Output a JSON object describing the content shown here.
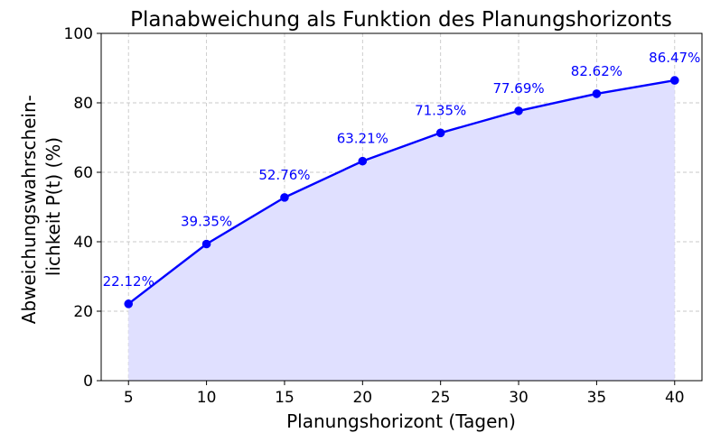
{
  "chart_data": {
    "type": "area",
    "title": "Planabweichung als Funktion des Planungshorizonts",
    "xlabel": "Planungshorizont (Tagen)",
    "ylabel_lines": [
      "Abweichungswahrschein-",
      "lichkeit P(t) (%)"
    ],
    "x": [
      5,
      10,
      15,
      20,
      25,
      30,
      35,
      40
    ],
    "values": [
      22.12,
      39.35,
      52.76,
      63.21,
      71.35,
      77.69,
      82.62,
      86.47
    ],
    "data_labels": [
      "22.12%",
      "39.35%",
      "52.76%",
      "63.21%",
      "71.35%",
      "77.69%",
      "82.62%",
      "86.47%"
    ],
    "xlim": [
      3.25,
      41.75
    ],
    "ylim": [
      0,
      100
    ],
    "xticks": [
      5,
      10,
      15,
      20,
      25,
      30,
      35,
      40
    ],
    "yticks": [
      0,
      20,
      40,
      60,
      80,
      100
    ],
    "grid": true,
    "colors": {
      "line": "#0000ff",
      "fill": "#e0e0ff",
      "label": "#0000ff",
      "grid": "#c8c8c8"
    }
  }
}
